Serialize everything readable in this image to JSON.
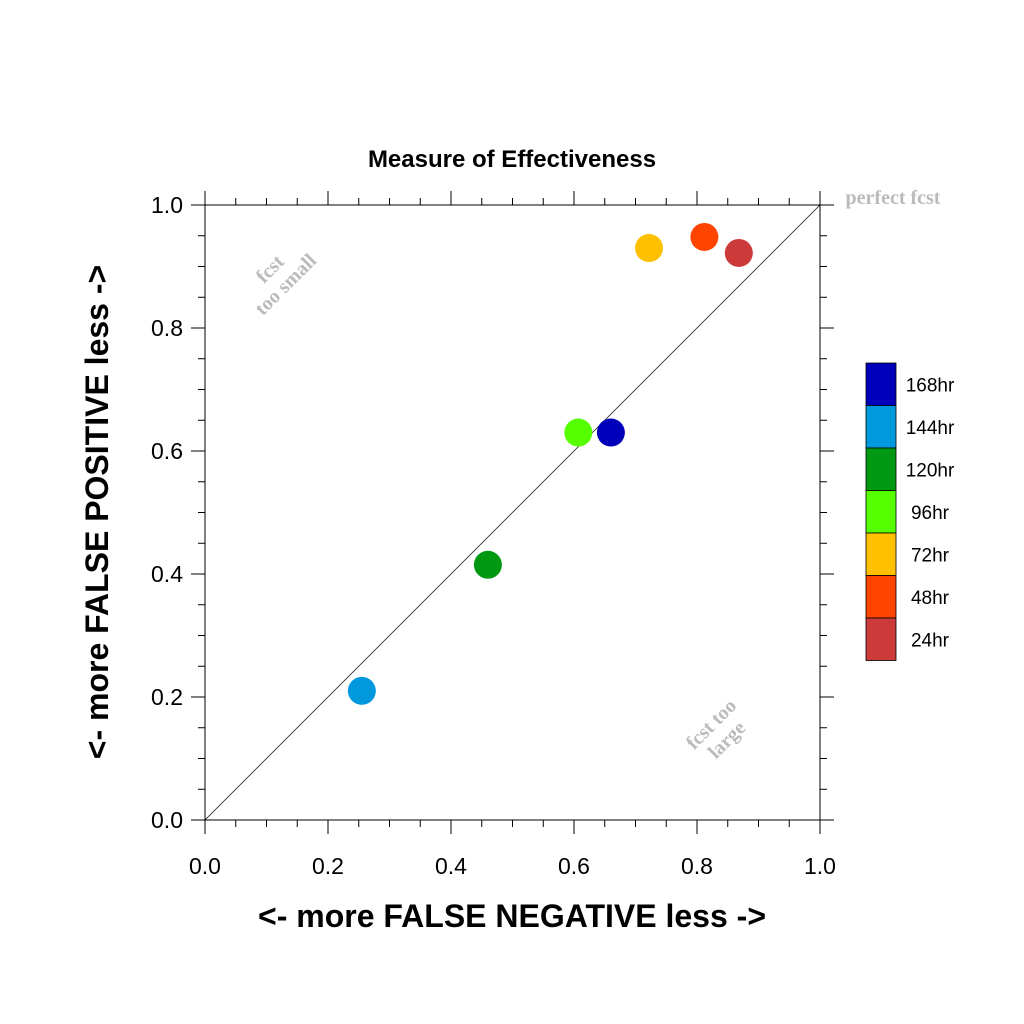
{
  "chart_data": {
    "type": "scatter",
    "title": "Measure of Effectiveness",
    "xlabel": "<- more   FALSE NEGATIVE   less ->",
    "ylabel": "<- more   FALSE POSITIVE   less ->",
    "xlim": [
      0.0,
      1.0
    ],
    "ylim": [
      0.0,
      1.0
    ],
    "xticks": [
      "0.0",
      "0.2",
      "0.4",
      "0.6",
      "0.8",
      "1.0"
    ],
    "yticks": [
      "0.0",
      "0.2",
      "0.4",
      "0.6",
      "0.8",
      "1.0"
    ],
    "grid": false,
    "reference_line": "diagonal",
    "annotations": {
      "perfect": "perfect fcst",
      "too_small_1": "fcst",
      "too_small_2": "too small",
      "too_large_1": "fcst too",
      "too_large_2": "large"
    },
    "legend_position": "right",
    "series": [
      {
        "name": "168hr",
        "color": "#0000bb",
        "x": 0.66,
        "y": 0.63
      },
      {
        "name": "144hr",
        "color": "#0099dd",
        "x": 0.255,
        "y": 0.21
      },
      {
        "name": "120hr",
        "color": "#009911",
        "x": 0.46,
        "y": 0.415
      },
      {
        "name": "96hr",
        "color": "#55ff00",
        "x": 0.607,
        "y": 0.63
      },
      {
        "name": "72hr",
        "color": "#ffc000",
        "x": 0.722,
        "y": 0.93
      },
      {
        "name": "48hr",
        "color": "#ff4400",
        "x": 0.812,
        "y": 0.948
      },
      {
        "name": "24hr",
        "color": "#cc3a3a",
        "x": 0.868,
        "y": 0.922
      }
    ]
  }
}
